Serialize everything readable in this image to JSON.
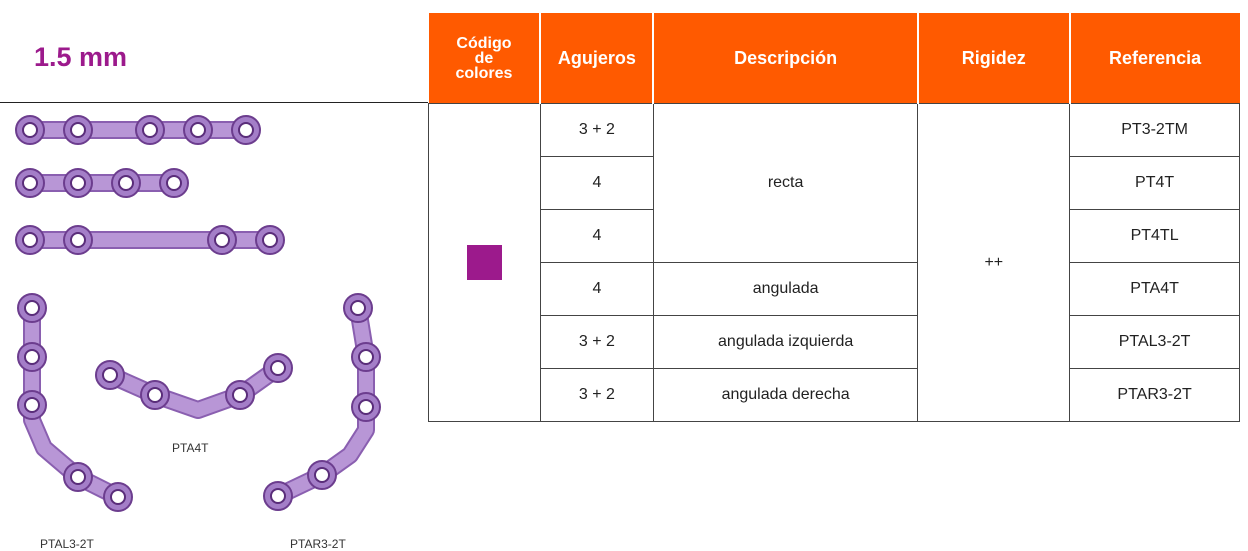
{
  "title": "1.5 mm",
  "figures": [
    "PTA4T",
    "PTAL3-2T",
    "PTAR3-2T"
  ],
  "table": {
    "headers": [
      "Código de colores",
      "Agujeros",
      "Descripción",
      "Rigidez",
      "Referencia"
    ],
    "swatch_color": "#9c1a8c",
    "rigidity": "++",
    "descriptions": [
      "recta",
      "angulada",
      "angulada izquierda",
      "angulada derecha"
    ],
    "holes": [
      "3 + 2",
      "4",
      "4",
      "4",
      "3 + 2",
      "3 + 2"
    ],
    "references": [
      "PT3-2TM",
      "PT4T",
      "PT4TL",
      "PTA4T",
      "PTAL3-2T",
      "PTAR3-2T"
    ]
  }
}
